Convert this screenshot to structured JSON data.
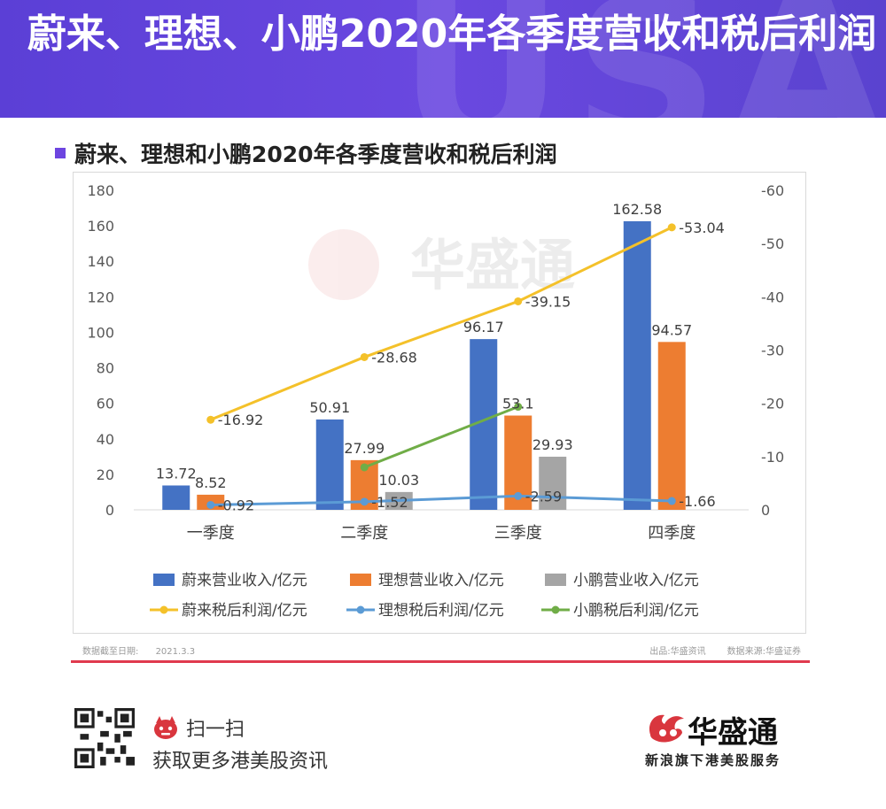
{
  "banner": {
    "title": "蔚来、理想、小鹏2020年各季度营收和税后利润",
    "deco_text": "USA"
  },
  "section": {
    "title": "蔚来、理想和小鹏2020年各季度营收和税后利润"
  },
  "watermark": "华盛通",
  "footer": {
    "date_label": "数据截至日期:",
    "date_value": "2021.3.3",
    "source_out": "出品:华盛资讯",
    "source_data": "数据来源:华盛证券"
  },
  "bottom": {
    "scan": "扫一扫",
    "promo": "获取更多港美股资讯",
    "brand_name": "华盛通",
    "brand_tag": "新浪旗下港美股服务"
  },
  "colors": {
    "banner": "#5b3fd6",
    "accent": "#6d45e0",
    "rule": "#e03a4e"
  },
  "chart_data": {
    "type": "bar",
    "categories": [
      "一季度",
      "二季度",
      "三季度",
      "四季度"
    ],
    "y_left": {
      "ylim": [
        0,
        180
      ],
      "ticks": [
        0,
        20,
        40,
        60,
        80,
        100,
        120,
        140,
        160,
        180
      ]
    },
    "y_right": {
      "ylim": [
        0,
        -60
      ],
      "ticks": [
        0,
        -10,
        -20,
        -30,
        -40,
        -50,
        -60
      ],
      "reversed": true
    },
    "bar_series": [
      {
        "name": "蔚来营业收入/亿元",
        "color": "#4472c4",
        "values": [
          13.72,
          50.91,
          96.17,
          162.58
        ],
        "labels": [
          "13.72",
          "50.91",
          "96.17",
          "162.58"
        ]
      },
      {
        "name": "理想营业收入/亿元",
        "color": "#ed7d31",
        "values": [
          8.52,
          27.99,
          53.1,
          94.57
        ],
        "labels": [
          "8.52",
          "27.99",
          "53.1",
          "94.57"
        ]
      },
      {
        "name": "小鹏营业收入/亿元",
        "color": "#a5a5a5",
        "values": [
          null,
          10.03,
          29.93,
          null
        ],
        "labels": [
          "",
          "10.03",
          "29.93",
          ""
        ]
      }
    ],
    "line_series": [
      {
        "name": "蔚来税后利润/亿元",
        "color": "#f4c12a",
        "values": [
          -16.92,
          -28.68,
          -39.15,
          -53.04
        ],
        "labels": [
          "-16.92",
          "-28.68",
          "-39.15",
          "-53.04"
        ]
      },
      {
        "name": "理想税后利润/亿元",
        "color": "#5b9bd5",
        "values": [
          -0.92,
          -1.52,
          -2.59,
          -1.66
        ],
        "labels": [
          "-0.92",
          "-1.52",
          "-2.59",
          "-1.66"
        ]
      },
      {
        "name": "小鹏税后利润/亿元",
        "color": "#70ad47",
        "values": [
          null,
          -7.98,
          -19.36,
          null
        ],
        "labels": [
          "",
          "",
          "",
          ""
        ]
      }
    ],
    "grid": false,
    "legend": "bottom"
  }
}
